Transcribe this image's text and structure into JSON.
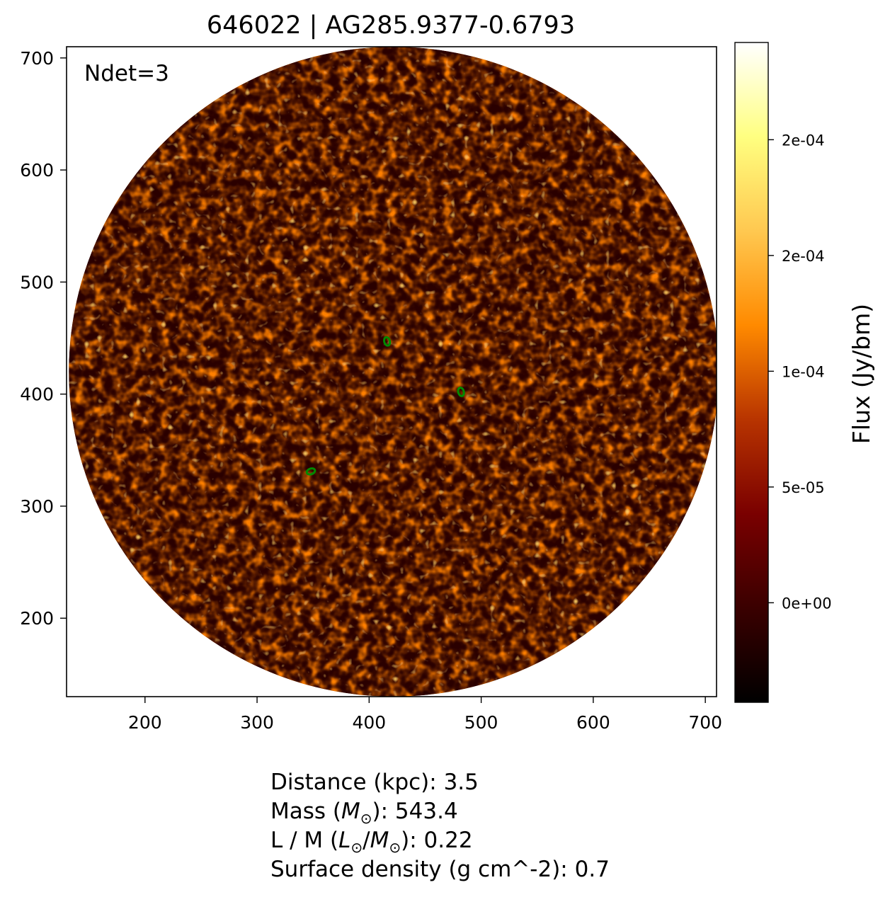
{
  "title": "646022 | AG285.9377-0.6793",
  "annotation": "Ndet=3",
  "colorbar_label": "Flux (Jy/bm)",
  "colormap": [
    "#000000",
    "#3a0000",
    "#7a0000",
    "#b83400",
    "#ff8a00",
    "#ffc850",
    "#ffff80",
    "#ffffff"
  ],
  "contour_color": "#008a00",
  "info_lines": [
    {
      "prefix": "Distance (kpc): ",
      "value": "3.5"
    },
    {
      "prefix": "Mass (",
      "symbol": "M",
      "sub": "⊙",
      "suffix": "): ",
      "value": "543.4"
    },
    {
      "prefix": "L / M (",
      "symbol": "L",
      "sub": "⊙",
      "mid": "/",
      "symbol2": "M",
      "sub2": "⊙",
      "suffix": "): ",
      "value": "0.22"
    },
    {
      "prefix": "Surface density (g cm^-2): ",
      "value": "0.7"
    }
  ],
  "chart_data": {
    "type": "heatmap",
    "title": "646022 | AG285.9377-0.6793",
    "xlabel": "",
    "ylabel": "",
    "xlim": [
      130,
      710
    ],
    "ylim": [
      130,
      710
    ],
    "x_ticks": [
      200,
      300,
      400,
      500,
      600,
      700
    ],
    "y_ticks": [
      200,
      300,
      400,
      500,
      600,
      700
    ],
    "field": {
      "center_x": 422,
      "center_y": 420,
      "radius": 290
    },
    "colorbar": {
      "label": "Flux (Jy/bm)",
      "range": [
        -4.3e-05,
        0.000242
      ],
      "ticks": [
        {
          "value": 0.0,
          "label": "0e+00"
        },
        {
          "value": 5e-05,
          "label": "5e-05"
        },
        {
          "value": 0.0001,
          "label": "1e-04"
        },
        {
          "value": 0.00015,
          "label": "2e-04"
        },
        {
          "value": 0.0002,
          "label": "2e-04"
        }
      ]
    },
    "detections": [
      {
        "x": 416,
        "y": 447
      },
      {
        "x": 482,
        "y": 402
      },
      {
        "x": 348,
        "y": 331
      }
    ],
    "ndet": 3
  }
}
